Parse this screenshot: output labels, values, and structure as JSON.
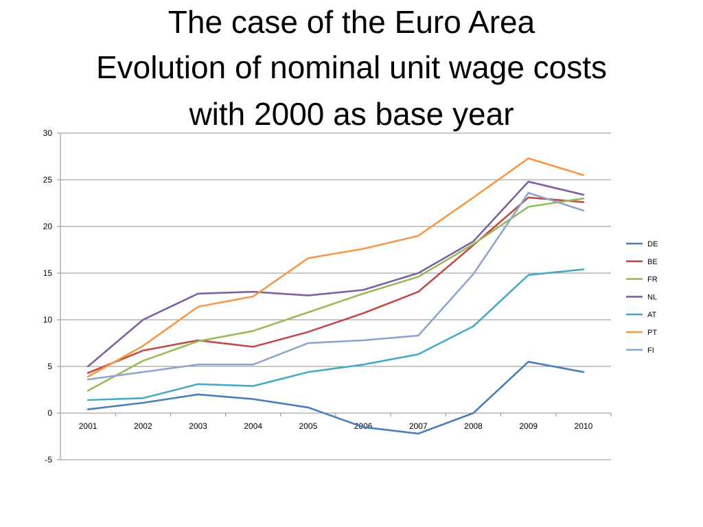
{
  "slide": {
    "title_lines": [
      "The case of the Euro Area",
      "Evolution of nominal unit wage costs",
      "with 2000 as base year"
    ]
  },
  "chart_data": {
    "type": "line",
    "title": "The case of the Euro Area Evolution of nominal unit wage costs with 2000 as base year",
    "xlabel": "",
    "ylabel": "",
    "categories": [
      "2001",
      "2002",
      "2003",
      "2004",
      "2005",
      "2006",
      "2007",
      "2008",
      "2009",
      "2010"
    ],
    "ylim": [
      -5,
      30
    ],
    "yticks": [
      -5,
      0,
      5,
      10,
      15,
      20,
      25,
      30
    ],
    "grid": "horizontal",
    "legend_position": "right",
    "series": [
      {
        "name": "DE",
        "color": "#4A7EBB",
        "values": [
          0.4,
          1.1,
          2.0,
          1.5,
          0.6,
          -1.5,
          -2.2,
          0.0,
          5.5,
          4.4
        ]
      },
      {
        "name": "BE",
        "color": "#BE4B48",
        "values": [
          4.3,
          6.7,
          7.8,
          7.1,
          8.7,
          10.7,
          13.0,
          18.0,
          23.1,
          22.6
        ]
      },
      {
        "name": "FR",
        "color": "#98B954",
        "values": [
          2.4,
          5.6,
          7.7,
          8.8,
          10.8,
          12.8,
          14.6,
          18.1,
          22.1,
          23.0
        ]
      },
      {
        "name": "NL",
        "color": "#7D60A0",
        "values": [
          5.0,
          10.0,
          12.8,
          13.0,
          12.6,
          13.2,
          15.0,
          18.4,
          24.8,
          23.4
        ]
      },
      {
        "name": "AT",
        "color": "#46AAC5",
        "values": [
          1.4,
          1.6,
          3.1,
          2.9,
          4.4,
          5.2,
          6.3,
          9.3,
          14.8,
          15.4
        ]
      },
      {
        "name": "PT",
        "color": "#F79646",
        "values": [
          3.9,
          7.2,
          11.4,
          12.5,
          16.6,
          17.6,
          19.0,
          23.1,
          27.3,
          25.5
        ]
      },
      {
        "name": "FI",
        "color": "#8EA5CB",
        "values": [
          3.6,
          4.4,
          5.2,
          5.2,
          7.5,
          7.8,
          8.3,
          14.9,
          23.6,
          21.7
        ]
      }
    ]
  }
}
